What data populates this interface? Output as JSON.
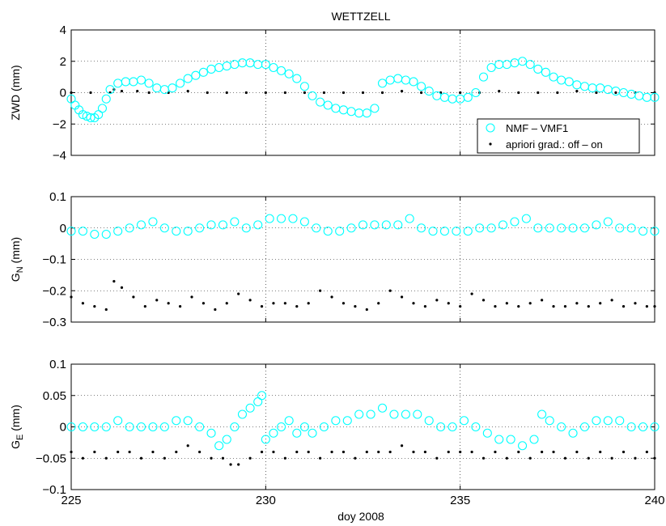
{
  "figure": {
    "title": "WETTZELL",
    "xlabel": "doy 2008"
  },
  "legend": {
    "location": "bottom-right of top panel",
    "entries": [
      {
        "label": "NMF – VMF1",
        "marker": "circle",
        "color": "#00ffff"
      },
      {
        "label": "apriori grad.: off – on",
        "marker": "dot",
        "color": "#000000"
      }
    ]
  },
  "chart_data": [
    {
      "type": "scatter",
      "title": "WETTZELL",
      "ylabel": "ZWD (mm)",
      "xlabel": "",
      "xlim": [
        225,
        240
      ],
      "ylim": [
        -4,
        4
      ],
      "xticks": [
        225,
        230,
        235,
        240
      ],
      "xtick_labels": [],
      "yticks": [
        -4,
        -2,
        0,
        2,
        4
      ],
      "ytick_labels": [
        "−4",
        "−2",
        "0",
        "2",
        "4"
      ],
      "grid": true,
      "series": [
        {
          "name": "NMF – VMF1",
          "marker": "circle",
          "color": "#00ffff",
          "x": [
            225.0,
            225.1,
            225.2,
            225.3,
            225.4,
            225.5,
            225.6,
            225.7,
            225.8,
            225.9,
            226.0,
            226.2,
            226.4,
            226.6,
            226.8,
            227.0,
            227.2,
            227.4,
            227.6,
            227.8,
            228.0,
            228.2,
            228.4,
            228.6,
            228.8,
            229.0,
            229.2,
            229.4,
            229.6,
            229.8,
            230.0,
            230.2,
            230.4,
            230.6,
            230.8,
            231.0,
            231.2,
            231.4,
            231.6,
            231.8,
            232.0,
            232.2,
            232.4,
            232.6,
            232.8,
            233.0,
            233.2,
            233.4,
            233.6,
            233.8,
            234.0,
            234.2,
            234.4,
            234.6,
            234.8,
            235.0,
            235.2,
            235.4,
            235.6,
            235.8,
            236.0,
            236.2,
            236.4,
            236.6,
            236.8,
            237.0,
            237.2,
            237.4,
            237.6,
            237.8,
            238.0,
            238.2,
            238.4,
            238.6,
            238.8,
            239.0,
            239.2,
            239.4,
            239.6,
            239.8,
            240.0
          ],
          "y": [
            -0.4,
            -0.8,
            -1.1,
            -1.4,
            -1.5,
            -1.6,
            -1.6,
            -1.4,
            -1.0,
            -0.4,
            0.2,
            0.6,
            0.7,
            0.7,
            0.8,
            0.6,
            0.3,
            0.2,
            0.3,
            0.6,
            0.9,
            1.1,
            1.3,
            1.5,
            1.6,
            1.7,
            1.8,
            1.9,
            1.9,
            1.8,
            1.8,
            1.6,
            1.4,
            1.2,
            0.9,
            0.4,
            -0.2,
            -0.6,
            -0.8,
            -1.0,
            -1.1,
            -1.2,
            -1.3,
            -1.3,
            -1.0,
            0.6,
            0.8,
            0.9,
            0.8,
            0.7,
            0.4,
            0.1,
            -0.2,
            -0.3,
            -0.4,
            -0.4,
            -0.3,
            0.0,
            1.0,
            1.6,
            1.8,
            1.8,
            1.9,
            2.0,
            1.8,
            1.5,
            1.3,
            1.0,
            0.8,
            0.7,
            0.5,
            0.4,
            0.3,
            0.3,
            0.2,
            0.1,
            0.0,
            -0.1,
            -0.2,
            -0.3,
            -0.3
          ]
        },
        {
          "name": "apriori grad.: off – on",
          "marker": "dot",
          "color": "#000000",
          "x": [
            225.0,
            225.5,
            226.0,
            226.1,
            226.3,
            226.7,
            227.0,
            227.5,
            228.0,
            228.5,
            229.0,
            229.5,
            230.0,
            230.5,
            231.0,
            231.5,
            232.0,
            232.5,
            233.0,
            233.5,
            234.0,
            234.5,
            235.0,
            235.5,
            236.0,
            236.5,
            237.0,
            237.5,
            238.0,
            238.5,
            239.0,
            239.5,
            240.0
          ],
          "y": [
            0.0,
            0.0,
            0.0,
            0.2,
            0.1,
            0.1,
            0.0,
            0.0,
            0.1,
            0.0,
            0.0,
            0.0,
            0.0,
            0.0,
            0.0,
            0.0,
            0.0,
            0.0,
            0.0,
            0.1,
            0.0,
            0.0,
            0.0,
            0.0,
            0.1,
            0.0,
            0.0,
            0.0,
            0.1,
            0.0,
            0.0,
            0.0,
            0.0
          ]
        }
      ]
    },
    {
      "type": "scatter",
      "ylabel": "G_N (mm)",
      "xlabel": "",
      "xlim": [
        225,
        240
      ],
      "ylim": [
        -0.3,
        0.1
      ],
      "xticks": [
        225,
        230,
        235,
        240
      ],
      "xtick_labels": [],
      "yticks": [
        -0.3,
        -0.2,
        -0.1,
        0,
        0.1
      ],
      "ytick_labels": [
        "−0.3",
        "−0.2",
        "−0.1",
        "0",
        "0.1"
      ],
      "grid": true,
      "series": [
        {
          "name": "NMF – VMF1",
          "marker": "circle",
          "color": "#00ffff",
          "x": [
            225.0,
            225.3,
            225.6,
            225.9,
            226.2,
            226.5,
            226.8,
            227.1,
            227.4,
            227.7,
            228.0,
            228.3,
            228.6,
            228.9,
            229.2,
            229.5,
            229.8,
            230.1,
            230.4,
            230.7,
            231.0,
            231.3,
            231.6,
            231.9,
            232.2,
            232.5,
            232.8,
            233.1,
            233.4,
            233.7,
            234.0,
            234.3,
            234.6,
            234.9,
            235.2,
            235.5,
            235.8,
            236.1,
            236.4,
            236.7,
            237.0,
            237.3,
            237.6,
            237.9,
            238.2,
            238.5,
            238.8,
            239.1,
            239.4,
            239.7,
            240.0
          ],
          "y": [
            -0.01,
            -0.01,
            -0.02,
            -0.02,
            -0.01,
            0.0,
            0.01,
            0.02,
            0.0,
            -0.01,
            -0.01,
            0.0,
            0.01,
            0.01,
            0.02,
            0.0,
            0.01,
            0.03,
            0.03,
            0.03,
            0.02,
            0.0,
            -0.01,
            -0.01,
            0.0,
            0.01,
            0.01,
            0.01,
            0.01,
            0.03,
            0.0,
            -0.01,
            -0.01,
            -0.01,
            -0.01,
            0.0,
            0.0,
            0.01,
            0.02,
            0.03,
            0.0,
            0.0,
            0.0,
            0.0,
            0.0,
            0.01,
            0.02,
            0.0,
            0.0,
            -0.01,
            -0.01
          ]
        },
        {
          "name": "apriori grad.: off – on",
          "marker": "dot",
          "color": "#000000",
          "x": [
            225.0,
            225.3,
            225.6,
            225.9,
            226.1,
            226.3,
            226.6,
            226.9,
            227.2,
            227.5,
            227.8,
            228.1,
            228.4,
            228.7,
            229.0,
            229.3,
            229.6,
            229.9,
            230.2,
            230.5,
            230.8,
            231.1,
            231.4,
            231.7,
            232.0,
            232.3,
            232.6,
            232.9,
            233.2,
            233.5,
            233.8,
            234.1,
            234.4,
            234.7,
            235.0,
            235.3,
            235.6,
            235.9,
            236.2,
            236.5,
            236.8,
            237.1,
            237.4,
            237.7,
            238.0,
            238.3,
            238.6,
            238.9,
            239.2,
            239.5,
            239.8,
            240.0
          ],
          "y": [
            -0.22,
            -0.24,
            -0.25,
            -0.26,
            -0.17,
            -0.19,
            -0.22,
            -0.25,
            -0.23,
            -0.24,
            -0.25,
            -0.22,
            -0.24,
            -0.26,
            -0.24,
            -0.21,
            -0.23,
            -0.25,
            -0.24,
            -0.24,
            -0.25,
            -0.24,
            -0.2,
            -0.22,
            -0.24,
            -0.25,
            -0.26,
            -0.24,
            -0.2,
            -0.22,
            -0.24,
            -0.25,
            -0.23,
            -0.24,
            -0.25,
            -0.21,
            -0.23,
            -0.25,
            -0.24,
            -0.25,
            -0.24,
            -0.23,
            -0.25,
            -0.25,
            -0.24,
            -0.25,
            -0.24,
            -0.23,
            -0.25,
            -0.24,
            -0.25,
            -0.25
          ]
        }
      ]
    },
    {
      "type": "scatter",
      "ylabel": "G_E (mm)",
      "xlabel": "doy 2008",
      "xlim": [
        225,
        240
      ],
      "ylim": [
        -0.1,
        0.1
      ],
      "xticks": [
        225,
        230,
        235,
        240
      ],
      "xtick_labels": [
        "225",
        "230",
        "235",
        "240"
      ],
      "yticks": [
        -0.1,
        -0.05,
        0,
        0.05,
        0.1
      ],
      "ytick_labels": [
        "−0.1",
        "−0.05",
        "0",
        "0.05",
        "0.1"
      ],
      "grid": true,
      "series": [
        {
          "name": "NMF – VMF1",
          "marker": "circle",
          "color": "#00ffff",
          "x": [
            225.0,
            225.3,
            225.6,
            225.9,
            226.2,
            226.5,
            226.8,
            227.1,
            227.4,
            227.7,
            228.0,
            228.3,
            228.6,
            228.8,
            229.0,
            229.2,
            229.4,
            229.6,
            229.8,
            229.9,
            230.0,
            230.2,
            230.4,
            230.6,
            230.8,
            231.0,
            231.2,
            231.5,
            231.8,
            232.1,
            232.4,
            232.7,
            233.0,
            233.3,
            233.6,
            233.9,
            234.2,
            234.5,
            234.8,
            235.1,
            235.4,
            235.7,
            236.0,
            236.3,
            236.6,
            236.9,
            237.1,
            237.3,
            237.6,
            237.9,
            238.2,
            238.5,
            238.8,
            239.1,
            239.4,
            239.7,
            240.0
          ],
          "y": [
            0.0,
            0.0,
            0.0,
            0.0,
            0.01,
            0.0,
            0.0,
            0.0,
            0.0,
            0.01,
            0.01,
            0.0,
            -0.01,
            -0.03,
            -0.02,
            0.0,
            0.02,
            0.03,
            0.04,
            0.05,
            -0.02,
            -0.01,
            0.0,
            0.01,
            -0.01,
            0.0,
            -0.01,
            0.0,
            0.01,
            0.01,
            0.02,
            0.02,
            0.03,
            0.02,
            0.02,
            0.02,
            0.01,
            0.0,
            0.0,
            0.01,
            0.0,
            -0.01,
            -0.02,
            -0.02,
            -0.03,
            -0.02,
            0.02,
            0.01,
            0.0,
            -0.01,
            0.0,
            0.01,
            0.01,
            0.01,
            0.0,
            0.0,
            0.0
          ]
        },
        {
          "name": "apriori grad.: off – on",
          "marker": "dot",
          "color": "#000000",
          "x": [
            225.0,
            225.3,
            225.6,
            225.9,
            226.2,
            226.5,
            226.8,
            227.1,
            227.4,
            227.7,
            228.0,
            228.3,
            228.6,
            228.9,
            229.1,
            229.3,
            229.6,
            229.9,
            230.2,
            230.5,
            230.8,
            231.1,
            231.4,
            231.7,
            232.0,
            232.3,
            232.6,
            232.9,
            233.2,
            233.5,
            233.8,
            234.1,
            234.4,
            234.7,
            235.0,
            235.3,
            235.6,
            235.9,
            236.2,
            236.5,
            236.8,
            237.1,
            237.4,
            237.7,
            238.0,
            238.3,
            238.6,
            238.9,
            239.2,
            239.5,
            239.8,
            240.0
          ],
          "y": [
            -0.04,
            -0.05,
            -0.04,
            -0.05,
            -0.04,
            -0.04,
            -0.05,
            -0.04,
            -0.05,
            -0.04,
            -0.03,
            -0.04,
            -0.05,
            -0.05,
            -0.06,
            -0.06,
            -0.05,
            -0.04,
            -0.04,
            -0.05,
            -0.04,
            -0.04,
            -0.05,
            -0.04,
            -0.04,
            -0.05,
            -0.04,
            -0.04,
            -0.04,
            -0.03,
            -0.04,
            -0.04,
            -0.05,
            -0.04,
            -0.04,
            -0.04,
            -0.05,
            -0.04,
            -0.05,
            -0.04,
            -0.05,
            -0.04,
            -0.04,
            -0.05,
            -0.04,
            -0.05,
            -0.04,
            -0.05,
            -0.04,
            -0.05,
            -0.04,
            -0.05
          ]
        }
      ]
    }
  ]
}
